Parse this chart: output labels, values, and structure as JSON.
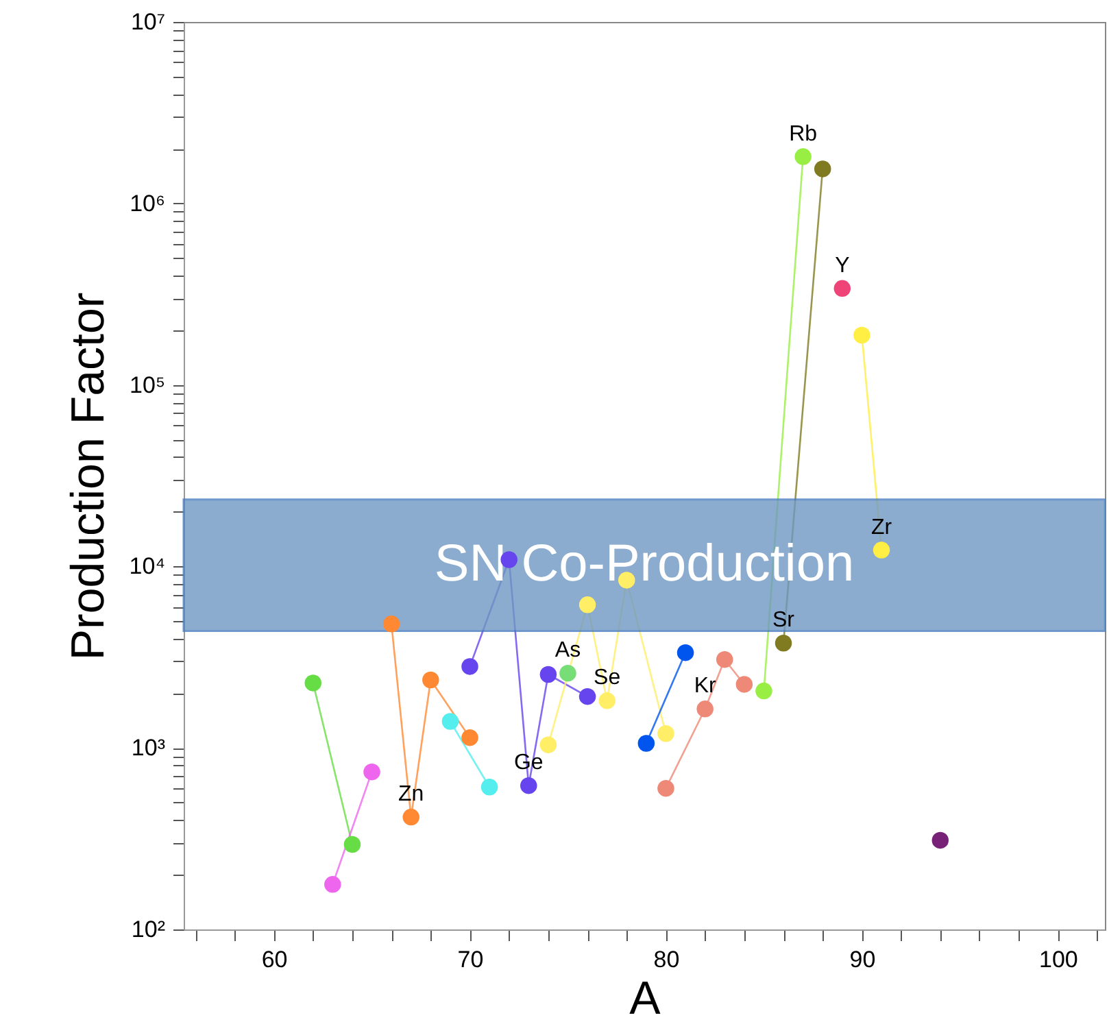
{
  "chart_data": {
    "type": "line",
    "xlabel": "A",
    "ylabel": "Production Factor",
    "log": "y",
    "grid": false,
    "marker": "circle",
    "xlim": [
      55.4,
      102.4
    ],
    "xticks": [
      {
        "value": 56,
        "label": null
      },
      {
        "value": 58,
        "label": null
      },
      60,
      {
        "value": 62,
        "label": null
      },
      {
        "value": 64,
        "label": null
      },
      {
        "value": 66,
        "label": null
      },
      {
        "value": 68,
        "label": null
      },
      70,
      {
        "value": 72,
        "label": null
      },
      {
        "value": 74,
        "label": null
      },
      {
        "value": 76,
        "label": null
      },
      {
        "value": 78,
        "label": null
      },
      80,
      {
        "value": 82,
        "label": null
      },
      {
        "value": 84,
        "label": null
      },
      {
        "value": 86,
        "label": null
      },
      {
        "value": 88,
        "label": null
      },
      90,
      {
        "value": 92,
        "label": null
      },
      {
        "value": 94,
        "label": null
      },
      {
        "value": 96,
        "label": null
      },
      {
        "value": 98,
        "label": null
      },
      100,
      {
        "value": 102,
        "label": null
      }
    ],
    "ylim": [
      100,
      10000000
    ],
    "yticks": [
      {
        "value": 100,
        "label": "10²"
      },
      {
        "value": 200,
        "label": null
      },
      {
        "value": 300,
        "label": null
      },
      {
        "value": 400,
        "label": null
      },
      {
        "value": 500,
        "label": null
      },
      {
        "value": 600,
        "label": null
      },
      {
        "value": 700,
        "label": null
      },
      {
        "value": 800,
        "label": null
      },
      {
        "value": 900,
        "label": null
      },
      {
        "value": 1000,
        "label": "10³"
      },
      {
        "value": 2000,
        "label": null
      },
      {
        "value": 3000,
        "label": null
      },
      {
        "value": 4000,
        "label": null
      },
      {
        "value": 5000,
        "label": null
      },
      {
        "value": 6000,
        "label": null
      },
      {
        "value": 7000,
        "label": null
      },
      {
        "value": 8000,
        "label": null
      },
      {
        "value": 9000,
        "label": null
      },
      {
        "value": 10000,
        "label": "10⁴"
      },
      {
        "value": 20000,
        "label": null
      },
      {
        "value": 30000,
        "label": null
      },
      {
        "value": 40000,
        "label": null
      },
      {
        "value": 50000,
        "label": null
      },
      {
        "value": 60000,
        "label": null
      },
      {
        "value": 70000,
        "label": null
      },
      {
        "value": 80000,
        "label": null
      },
      {
        "value": 90000,
        "label": null
      },
      {
        "value": 100000,
        "label": "10⁵"
      },
      {
        "value": 200000,
        "label": null
      },
      {
        "value": 300000,
        "label": null
      },
      {
        "value": 400000,
        "label": null
      },
      {
        "value": 500000,
        "label": null
      },
      {
        "value": 600000,
        "label": null
      },
      {
        "value": 700000,
        "label": null
      },
      {
        "value": 800000,
        "label": null
      },
      {
        "value": 900000,
        "label": null
      },
      {
        "value": 1000000,
        "label": "10⁶"
      },
      {
        "value": 2000000,
        "label": null
      },
      {
        "value": 3000000,
        "label": null
      },
      {
        "value": 4000000,
        "label": null
      },
      {
        "value": 5000000,
        "label": null
      },
      {
        "value": 6000000,
        "label": null
      },
      {
        "value": 7000000,
        "label": null
      },
      {
        "value": 8000000,
        "label": null
      },
      {
        "value": 9000000,
        "label": null
      },
      {
        "value": 10000000,
        "label": "10⁷"
      }
    ],
    "series": [
      {
        "color": "#66dd44",
        "x": [
          62,
          64
        ],
        "values": [
          2280,
          294
        ]
      },
      {
        "color": "#ee66ee",
        "x": [
          63,
          65
        ],
        "values": [
          177,
          738
        ]
      },
      {
        "color": "#ff8833",
        "x": [
          66,
          67,
          68,
          70
        ],
        "values": [
          4820,
          416,
          2370,
          1140
        ]
      },
      {
        "color": "#55eeee",
        "x": [
          69,
          71
        ],
        "values": [
          1400,
          609
        ]
      },
      {
        "color": "#6644ee",
        "x": [
          70,
          72,
          73,
          74,
          76
        ],
        "values": [
          2810,
          10900,
          620,
          2540,
          1920
        ]
      },
      {
        "color": "#77dd77",
        "x": [
          75
        ],
        "values": [
          2580
        ]
      },
      {
        "color": "#ffee66",
        "x": [
          74,
          76,
          77,
          78,
          80
        ],
        "values": [
          1040,
          6150,
          1820,
          8400,
          1200
        ]
      },
      {
        "color": "#0055ee",
        "x": [
          79,
          81
        ],
        "values": [
          1060,
          3350
        ]
      },
      {
        "color": "#ee8877",
        "x": [
          80,
          82,
          83,
          84
        ],
        "values": [
          599,
          1640,
          3070,
          2240
        ]
      },
      {
        "color": "#99ee44",
        "x": [
          85,
          87
        ],
        "values": [
          2060,
          1810000
        ]
      },
      {
        "color": "#807a20",
        "x": [
          86,
          88
        ],
        "values": [
          3780,
          1550000
        ]
      },
      {
        "color": "#ee4477",
        "x": [
          89
        ],
        "values": [
          340000
        ]
      },
      {
        "color": "#ffee44",
        "x": [
          90,
          91
        ],
        "values": [
          188000,
          12300
        ]
      },
      {
        "color": "#772277",
        "x": [
          94
        ],
        "values": [
          310
        ]
      }
    ],
    "bands": [
      {
        "axis": "y",
        "from": 4410,
        "to": 23400,
        "label": "SN Co-Production",
        "color": "#6f98c2"
      }
    ],
    "annotations": [
      {
        "text": "Zn",
        "x": 67,
        "y": 416
      },
      {
        "text": "Ge",
        "x": 73,
        "y": 620
      },
      {
        "text": "As",
        "x": 75,
        "y": 2580
      },
      {
        "text": "Se",
        "x": 77,
        "y": 1820
      },
      {
        "text": "Kr",
        "x": 82,
        "y": 1640
      },
      {
        "text": "Sr",
        "x": 86,
        "y": 3780
      },
      {
        "text": "Zr",
        "x": 91,
        "y": 12300
      },
      {
        "text": "Y",
        "x": 89,
        "y": 340000
      },
      {
        "text": "Rb",
        "x": 87,
        "y": 1810000
      }
    ]
  }
}
